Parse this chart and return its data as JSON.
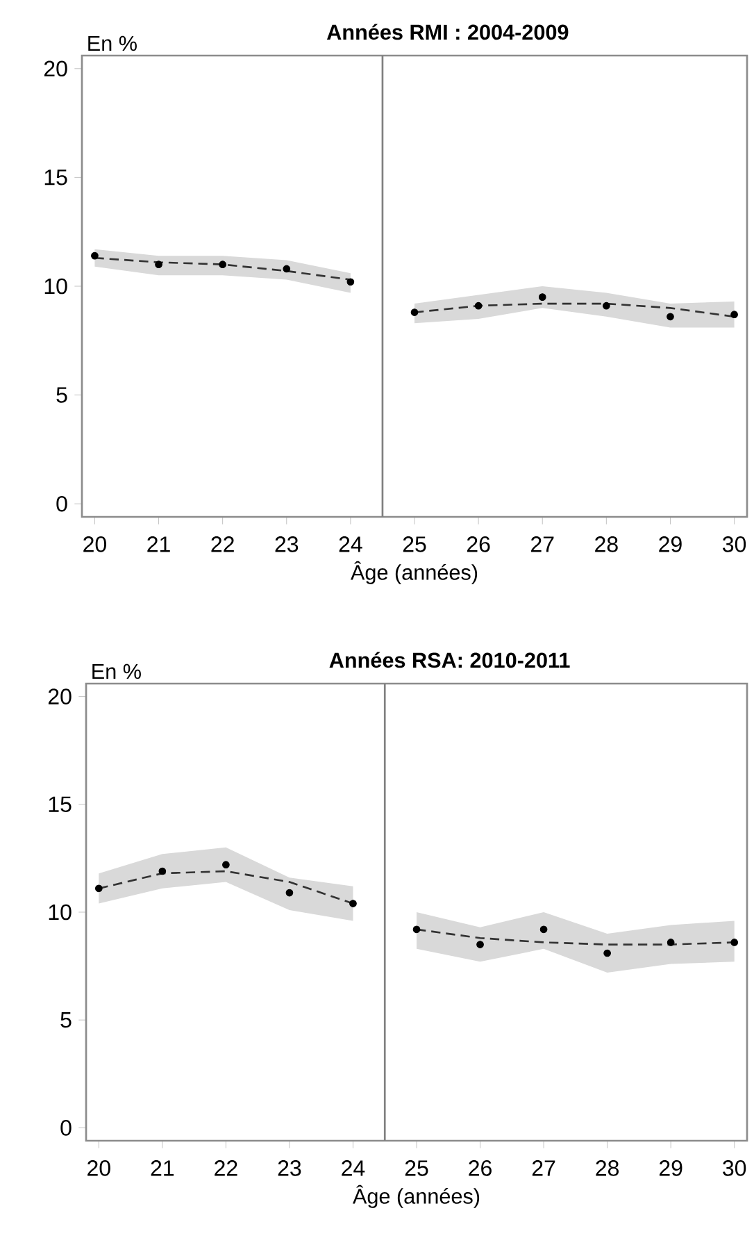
{
  "chart_data": [
    {
      "type": "line",
      "title": "Années RMI : 2004-2009",
      "ylabel": "En %",
      "xlabel": "Âge (années)",
      "xlim": [
        19.8,
        30.2
      ],
      "ylim": [
        -0.6,
        20.6
      ],
      "xticks": [
        20,
        21,
        22,
        23,
        24,
        25,
        26,
        27,
        28,
        29,
        30
      ],
      "yticks": [
        0,
        5,
        10,
        15,
        20
      ],
      "ref_lines": [
        {
          "axis": "x",
          "value": 24.5,
          "color": "#808080"
        }
      ],
      "series": [
        {
          "type": "scatter",
          "marker": "circle",
          "color": "#000000",
          "x": [
            20,
            21,
            22,
            23,
            24,
            25,
            26,
            27,
            28,
            29,
            30
          ],
          "values": [
            11.4,
            11.0,
            11.0,
            10.8,
            10.2,
            8.8,
            9.1,
            9.5,
            9.1,
            8.6,
            8.7
          ]
        },
        {
          "line_style": "dashed",
          "marker": "none",
          "color": "#333333",
          "x": [
            20,
            21,
            22,
            23,
            24
          ],
          "values": [
            11.3,
            11.1,
            11.0,
            10.7,
            10.3
          ],
          "lower": [
            10.9,
            10.5,
            10.5,
            10.3,
            9.7
          ],
          "upper": [
            11.7,
            11.4,
            11.4,
            11.2,
            10.6
          ]
        },
        {
          "line_style": "dashed",
          "marker": "none",
          "color": "#333333",
          "x": [
            25,
            26,
            27,
            28,
            29,
            30
          ],
          "values": [
            8.8,
            9.1,
            9.2,
            9.2,
            9.0,
            8.6
          ],
          "lower": [
            8.3,
            8.5,
            9.0,
            8.6,
            8.1,
            8.1
          ],
          "upper": [
            9.2,
            9.6,
            10.0,
            9.7,
            9.2,
            9.3
          ]
        }
      ]
    },
    {
      "type": "line",
      "title": "Années RSA: 2010-2011",
      "ylabel": "En %",
      "xlabel": "Âge (années)",
      "xlim": [
        19.8,
        30.2
      ],
      "ylim": [
        -0.6,
        20.6
      ],
      "xticks": [
        20,
        21,
        22,
        23,
        24,
        25,
        26,
        27,
        28,
        29,
        30
      ],
      "yticks": [
        0,
        5,
        10,
        15,
        20
      ],
      "ref_lines": [
        {
          "axis": "x",
          "value": 24.5,
          "color": "#808080"
        }
      ],
      "series": [
        {
          "type": "scatter",
          "marker": "circle",
          "color": "#000000",
          "x": [
            20,
            21,
            22,
            23,
            24,
            25,
            26,
            27,
            28,
            29,
            30
          ],
          "values": [
            11.1,
            11.9,
            12.2,
            10.9,
            10.4,
            9.2,
            8.5,
            9.2,
            8.1,
            8.6,
            8.6
          ]
        },
        {
          "line_style": "dashed",
          "marker": "none",
          "color": "#333333",
          "x": [
            20,
            21,
            22,
            23,
            24
          ],
          "values": [
            11.1,
            11.8,
            11.9,
            11.4,
            10.4
          ],
          "lower": [
            10.4,
            11.1,
            11.4,
            10.1,
            9.6
          ],
          "upper": [
            11.8,
            12.7,
            13.0,
            11.6,
            11.2
          ]
        },
        {
          "line_style": "dashed",
          "marker": "none",
          "color": "#333333",
          "x": [
            25,
            26,
            27,
            28,
            29,
            30
          ],
          "values": [
            9.2,
            8.8,
            8.6,
            8.5,
            8.5,
            8.6
          ],
          "lower": [
            8.3,
            7.7,
            8.3,
            7.2,
            7.6,
            7.7
          ],
          "upper": [
            10.0,
            9.3,
            10.0,
            9.0,
            9.4,
            9.6
          ]
        }
      ]
    }
  ]
}
